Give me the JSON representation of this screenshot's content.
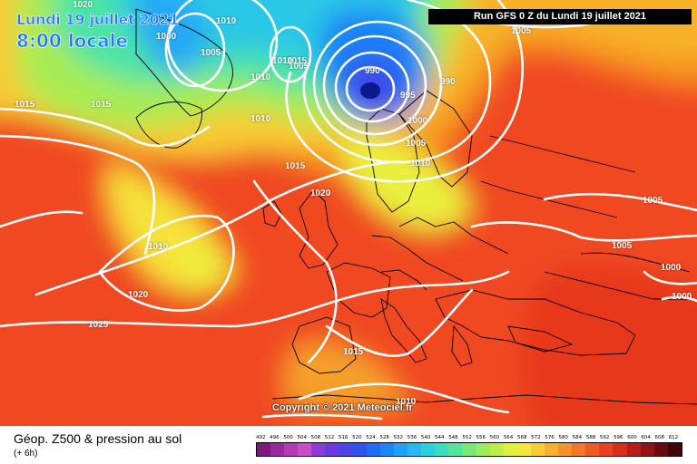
{
  "map": {
    "date_label": "Lundi 19 juillet 2021",
    "time_label": "8:00 locale",
    "run_label": "Run GFS 0 Z du Lundi 19 juillet 2021",
    "copyright": "Copyright © 2021 Meteociel.fr",
    "low_center_color": "#0a1a8c",
    "contour_color": "#ffffff",
    "pressure_labels": [
      "1020",
      "1010",
      "1000",
      "1005",
      "1010",
      "1015",
      "1015",
      "1010",
      "1020",
      "1015",
      "1010",
      "1020",
      "1025",
      "1015",
      "1010",
      "1005",
      "990",
      "995",
      "990",
      "1000",
      "1005",
      "1010",
      "1005",
      "1005",
      "1005",
      "1000",
      "1000",
      "1015",
      "1010"
    ]
  },
  "legend": {
    "title": "Géop. Z500 & pression au sol",
    "subtitle": "(+ 6h)",
    "scale_values": [
      "492",
      "496",
      "500",
      "504",
      "508",
      "512",
      "516",
      "520",
      "524",
      "528",
      "532",
      "536",
      "540",
      "544",
      "548",
      "552",
      "556",
      "560",
      "564",
      "568",
      "572",
      "576",
      "580",
      "584",
      "588",
      "592",
      "596",
      "600",
      "604",
      "608",
      "612"
    ],
    "scale_colors": [
      "#7a1a7a",
      "#9a2a9a",
      "#b53ab5",
      "#c84ec8",
      "#8c3cd8",
      "#6a3ce0",
      "#4a46e8",
      "#2c55f0",
      "#1e6cf5",
      "#1c86f8",
      "#20a0f6",
      "#26b8ee",
      "#2ccfdc",
      "#3cdcc0",
      "#55e49c",
      "#78e878",
      "#9cec5c",
      "#c0ee48",
      "#e2f040",
      "#f6e83a",
      "#f8cc34",
      "#f8b030",
      "#f6942c",
      "#f27828",
      "#ee5c24",
      "#e84020",
      "#d82c1c",
      "#b81c18",
      "#901214",
      "#640a10",
      "#3c060a"
    ]
  }
}
